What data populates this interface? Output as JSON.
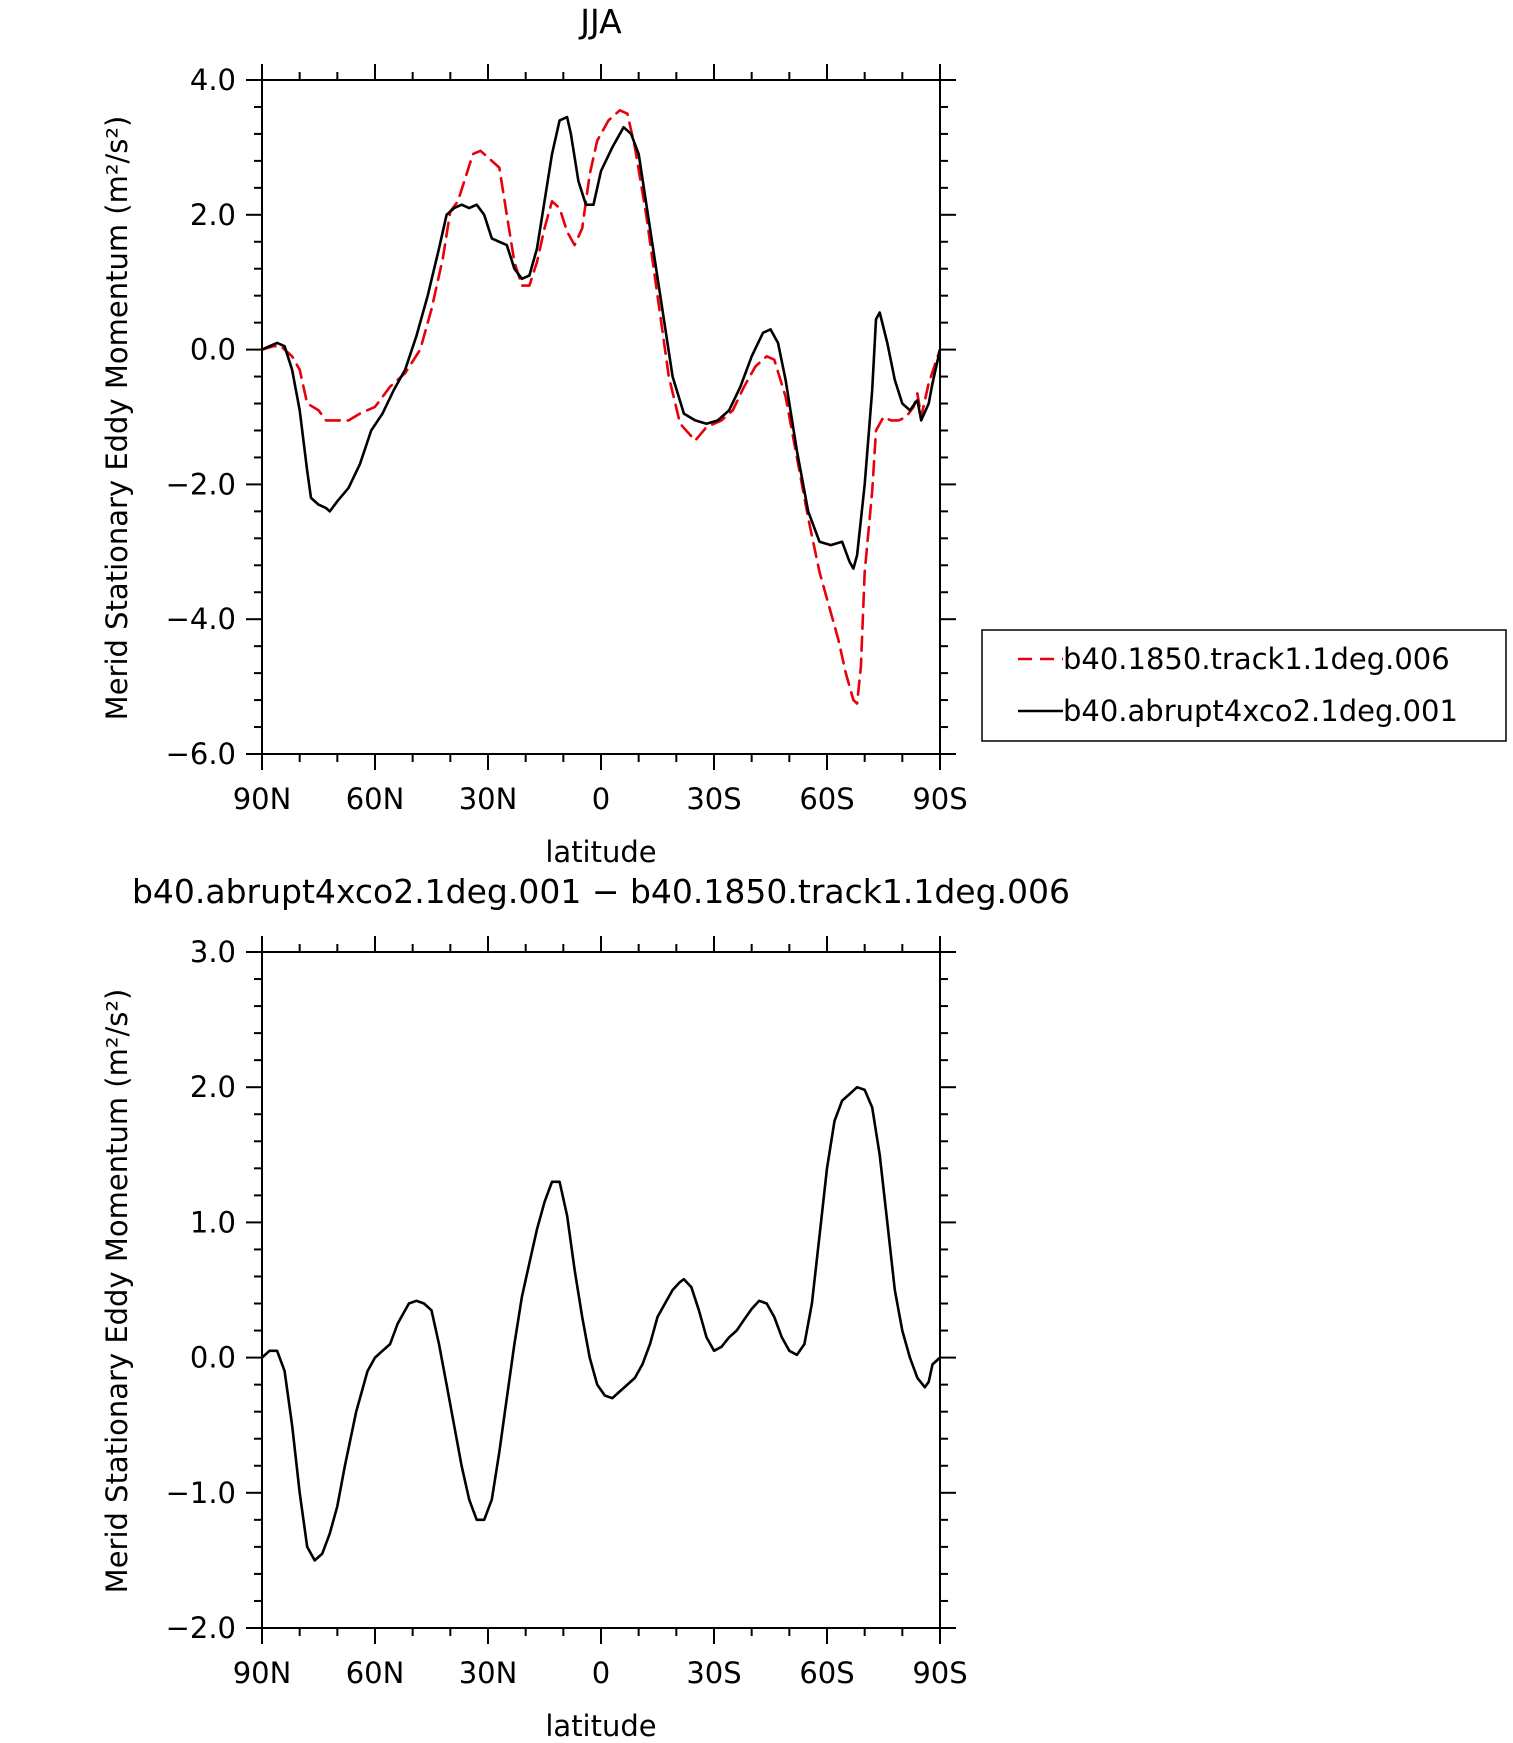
{
  "chart_data": [
    {
      "type": "line",
      "title": "JJA",
      "xlabel": "latitude",
      "ylabel": "Merid Stationary Eddy Momentum (m²/s²)",
      "xlim": [
        90,
        -90
      ],
      "ylim": [
        -6.0,
        4.0
      ],
      "x_ticks": [
        90,
        60,
        30,
        0,
        -30,
        -60,
        -90
      ],
      "x_tick_labels": [
        "90N",
        "60N",
        "30N",
        "0",
        "30S",
        "60S",
        "90S"
      ],
      "y_ticks": [
        -6,
        -4,
        -2,
        0,
        2,
        4
      ],
      "y_tick_labels": [
        "−6.0",
        "−4.0",
        "−2.0",
        "0.0",
        "2.0",
        "4.0"
      ],
      "legend_position": "right",
      "series": [
        {
          "name": "b40.1850.track1.1deg.006",
          "style": "dashed",
          "color": "#e8000b",
          "points": [
            [
              90,
              0
            ],
            [
              87,
              0.05
            ],
            [
              85,
              0.05
            ],
            [
              82,
              -0.1
            ],
            [
              80,
              -0.3
            ],
            [
              78,
              -0.8
            ],
            [
              75,
              -0.9
            ],
            [
              73,
              -1.05
            ],
            [
              70,
              -1.05
            ],
            [
              67,
              -1.05
            ],
            [
              64,
              -0.95
            ],
            [
              60,
              -0.85
            ],
            [
              56,
              -0.55
            ],
            [
              52,
              -0.35
            ],
            [
              48,
              0
            ],
            [
              45,
              0.6
            ],
            [
              42,
              1.35
            ],
            [
              40,
              2.05
            ],
            [
              38,
              2.2
            ],
            [
              36,
              2.55
            ],
            [
              34,
              2.9
            ],
            [
              32,
              2.95
            ],
            [
              30,
              2.85
            ],
            [
              27,
              2.7
            ],
            [
              25,
              2.0
            ],
            [
              23,
              1.3
            ],
            [
              21,
              0.95
            ],
            [
              19,
              0.95
            ],
            [
              17,
              1.3
            ],
            [
              15,
              1.8
            ],
            [
              13,
              2.2
            ],
            [
              11,
              2.1
            ],
            [
              9,
              1.75
            ],
            [
              7,
              1.55
            ],
            [
              5,
              1.8
            ],
            [
              3,
              2.6
            ],
            [
              1,
              3.1
            ],
            [
              -2,
              3.4
            ],
            [
              -5,
              3.55
            ],
            [
              -7,
              3.5
            ],
            [
              -9,
              3.0
            ],
            [
              -12,
              2.0
            ],
            [
              -15,
              0.8
            ],
            [
              -18,
              -0.4
            ],
            [
              -21,
              -1.1
            ],
            [
              -25,
              -1.35
            ],
            [
              -28,
              -1.15
            ],
            [
              -32,
              -1.05
            ],
            [
              -35,
              -0.9
            ],
            [
              -38,
              -0.55
            ],
            [
              -41,
              -0.25
            ],
            [
              -44,
              -0.1
            ],
            [
              -46,
              -0.15
            ],
            [
              -49,
              -0.7
            ],
            [
              -52,
              -1.6
            ],
            [
              -55,
              -2.5
            ],
            [
              -58,
              -3.3
            ],
            [
              -61,
              -3.9
            ],
            [
              -63,
              -4.3
            ],
            [
              -65,
              -4.8
            ],
            [
              -67,
              -5.2
            ],
            [
              -68,
              -5.25
            ],
            [
              -69,
              -4.7
            ],
            [
              -70,
              -3.3
            ],
            [
              -72,
              -2.1
            ],
            [
              -73,
              -1.2
            ],
            [
              -75,
              -1.0
            ],
            [
              -77,
              -1.05
            ],
            [
              -79,
              -1.05
            ],
            [
              -81,
              -1.0
            ],
            [
              -83,
              -0.85
            ],
            [
              -84,
              -0.65
            ],
            [
              -85,
              -1.0
            ],
            [
              -87,
              -0.5
            ],
            [
              -90,
              0
            ]
          ]
        },
        {
          "name": "b40.abrupt4xco2.1deg.001",
          "style": "solid",
          "color": "#000000",
          "points": [
            [
              90,
              0
            ],
            [
              88,
              0.05
            ],
            [
              86,
              0.1
            ],
            [
              84,
              0.05
            ],
            [
              82,
              -0.3
            ],
            [
              80,
              -0.9
            ],
            [
              78,
              -1.8
            ],
            [
              77,
              -2.2
            ],
            [
              75,
              -2.3
            ],
            [
              73,
              -2.35
            ],
            [
              72,
              -2.4
            ],
            [
              70,
              -2.25
            ],
            [
              67,
              -2.05
            ],
            [
              64,
              -1.7
            ],
            [
              61,
              -1.2
            ],
            [
              58,
              -0.95
            ],
            [
              55,
              -0.6
            ],
            [
              52,
              -0.3
            ],
            [
              49,
              0.2
            ],
            [
              46,
              0.8
            ],
            [
              43,
              1.5
            ],
            [
              41,
              2.0
            ],
            [
              39,
              2.1
            ],
            [
              37,
              2.15
            ],
            [
              35,
              2.1
            ],
            [
              33,
              2.15
            ],
            [
              31,
              2.0
            ],
            [
              29,
              1.65
            ],
            [
              27,
              1.6
            ],
            [
              25,
              1.55
            ],
            [
              23,
              1.2
            ],
            [
              21,
              1.05
            ],
            [
              19,
              1.1
            ],
            [
              17,
              1.5
            ],
            [
              15,
              2.2
            ],
            [
              13,
              2.9
            ],
            [
              11,
              3.4
            ],
            [
              9,
              3.45
            ],
            [
              8,
              3.2
            ],
            [
              6,
              2.5
            ],
            [
              4,
              2.15
            ],
            [
              2,
              2.15
            ],
            [
              0,
              2.65
            ],
            [
              -3,
              3.0
            ],
            [
              -6,
              3.3
            ],
            [
              -8,
              3.2
            ],
            [
              -10,
              2.9
            ],
            [
              -13,
              1.8
            ],
            [
              -16,
              0.7
            ],
            [
              -19,
              -0.4
            ],
            [
              -22,
              -0.95
            ],
            [
              -25,
              -1.05
            ],
            [
              -28,
              -1.1
            ],
            [
              -31,
              -1.05
            ],
            [
              -34,
              -0.9
            ],
            [
              -37,
              -0.55
            ],
            [
              -40,
              -0.1
            ],
            [
              -43,
              0.25
            ],
            [
              -45,
              0.3
            ],
            [
              -47,
              0.1
            ],
            [
              -49,
              -0.45
            ],
            [
              -52,
              -1.5
            ],
            [
              -55,
              -2.4
            ],
            [
              -58,
              -2.85
            ],
            [
              -61,
              -2.9
            ],
            [
              -64,
              -2.85
            ],
            [
              -66,
              -3.15
            ],
            [
              -67,
              -3.25
            ],
            [
              -68,
              -3.05
            ],
            [
              -70,
              -2.0
            ],
            [
              -72,
              -0.6
            ],
            [
              -73,
              0.45
            ],
            [
              -74,
              0.55
            ],
            [
              -76,
              0.1
            ],
            [
              -78,
              -0.45
            ],
            [
              -80,
              -0.8
            ],
            [
              -82,
              -0.9
            ],
            [
              -84,
              -0.75
            ],
            [
              -85,
              -1.05
            ],
            [
              -87,
              -0.8
            ],
            [
              -88,
              -0.5
            ],
            [
              -90,
              0
            ]
          ]
        }
      ]
    },
    {
      "type": "line",
      "title": "b40.abrupt4xco2.1deg.001 − b40.1850.track1.1deg.006",
      "xlabel": "latitude",
      "ylabel": "Merid Stationary Eddy Momentum (m²/s²)",
      "xlim": [
        90,
        -90
      ],
      "ylim": [
        -2.0,
        3.0
      ],
      "x_ticks": [
        90,
        60,
        30,
        0,
        -30,
        -60,
        -90
      ],
      "x_tick_labels": [
        "90N",
        "60N",
        "30N",
        "0",
        "30S",
        "60S",
        "90S"
      ],
      "y_ticks": [
        -2,
        -1,
        0,
        1,
        2,
        3
      ],
      "y_tick_labels": [
        "−2.0",
        "−1.0",
        "0.0",
        "1.0",
        "2.0",
        "3.0"
      ],
      "series": [
        {
          "style": "solid",
          "color": "#000000",
          "points": [
            [
              90,
              0
            ],
            [
              88,
              0.05
            ],
            [
              86,
              0.05
            ],
            [
              84,
              -0.1
            ],
            [
              82,
              -0.5
            ],
            [
              80,
              -1.0
            ],
            [
              78,
              -1.4
            ],
            [
              76,
              -1.5
            ],
            [
              74,
              -1.45
            ],
            [
              72,
              -1.3
            ],
            [
              70,
              -1.1
            ],
            [
              68,
              -0.8
            ],
            [
              65,
              -0.4
            ],
            [
              62,
              -0.1
            ],
            [
              60,
              0.0
            ],
            [
              58,
              0.05
            ],
            [
              56,
              0.1
            ],
            [
              54,
              0.25
            ],
            [
              51,
              0.4
            ],
            [
              49,
              0.42
            ],
            [
              47,
              0.4
            ],
            [
              45,
              0.35
            ],
            [
              43,
              0.1
            ],
            [
              41,
              -0.2
            ],
            [
              39,
              -0.5
            ],
            [
              37,
              -0.8
            ],
            [
              35,
              -1.05
            ],
            [
              33,
              -1.2
            ],
            [
              31,
              -1.2
            ],
            [
              29,
              -1.05
            ],
            [
              27,
              -0.7
            ],
            [
              25,
              -0.3
            ],
            [
              23,
              0.1
            ],
            [
              21,
              0.45
            ],
            [
              19,
              0.7
            ],
            [
              17,
              0.95
            ],
            [
              15,
              1.15
            ],
            [
              13,
              1.3
            ],
            [
              11,
              1.3
            ],
            [
              9,
              1.05
            ],
            [
              7,
              0.65
            ],
            [
              5,
              0.3
            ],
            [
              3,
              0.0
            ],
            [
              1,
              -0.2
            ],
            [
              -1,
              -0.28
            ],
            [
              -3,
              -0.3
            ],
            [
              -5,
              -0.25
            ],
            [
              -7,
              -0.2
            ],
            [
              -9,
              -0.15
            ],
            [
              -11,
              -0.05
            ],
            [
              -13,
              0.1
            ],
            [
              -15,
              0.3
            ],
            [
              -17,
              0.4
            ],
            [
              -19,
              0.5
            ],
            [
              -21,
              0.56
            ],
            [
              -22,
              0.58
            ],
            [
              -24,
              0.52
            ],
            [
              -26,
              0.35
            ],
            [
              -28,
              0.15
            ],
            [
              -30,
              0.05
            ],
            [
              -32,
              0.08
            ],
            [
              -34,
              0.15
            ],
            [
              -36,
              0.2
            ],
            [
              -38,
              0.28
            ],
            [
              -40,
              0.36
            ],
            [
              -42,
              0.42
            ],
            [
              -44,
              0.4
            ],
            [
              -46,
              0.3
            ],
            [
              -48,
              0.15
            ],
            [
              -50,
              0.05
            ],
            [
              -52,
              0.02
            ],
            [
              -54,
              0.1
            ],
            [
              -56,
              0.4
            ],
            [
              -58,
              0.9
            ],
            [
              -60,
              1.4
            ],
            [
              -62,
              1.75
            ],
            [
              -64,
              1.9
            ],
            [
              -66,
              1.95
            ],
            [
              -68,
              2.0
            ],
            [
              -70,
              1.98
            ],
            [
              -72,
              1.85
            ],
            [
              -74,
              1.5
            ],
            [
              -76,
              1.0
            ],
            [
              -78,
              0.5
            ],
            [
              -80,
              0.2
            ],
            [
              -82,
              0.0
            ],
            [
              -84,
              -0.15
            ],
            [
              -86,
              -0.22
            ],
            [
              -87,
              -0.18
            ],
            [
              -88,
              -0.05
            ],
            [
              -90,
              0
            ]
          ]
        }
      ]
    }
  ]
}
